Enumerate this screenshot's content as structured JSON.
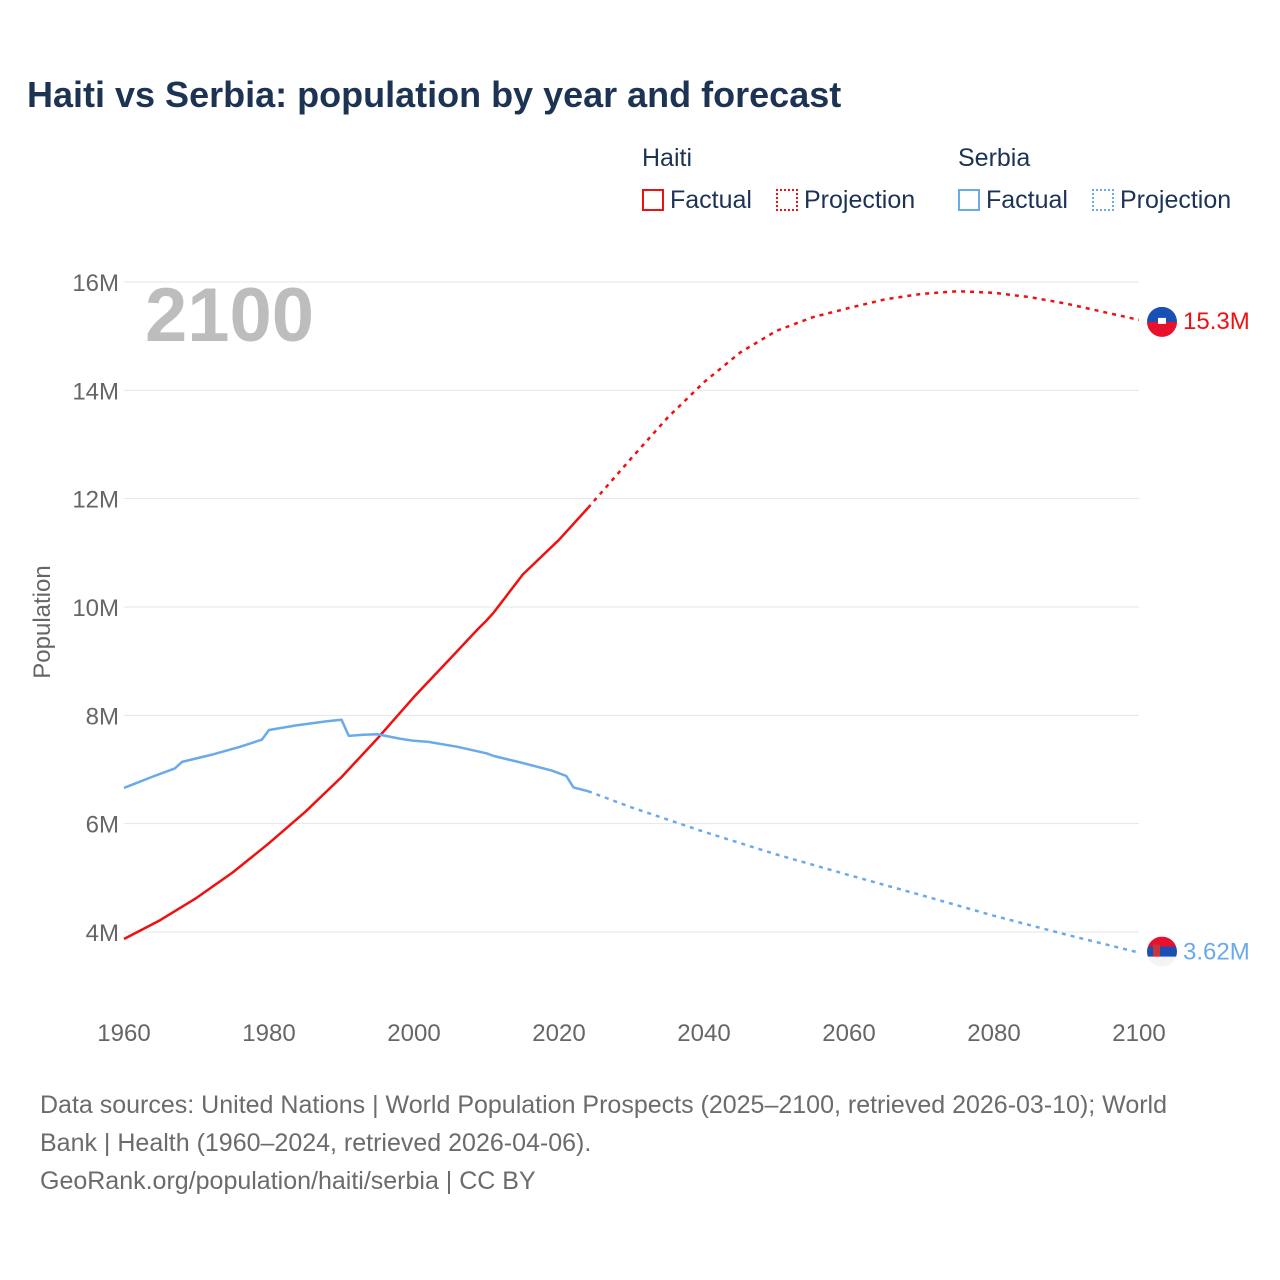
{
  "chart_data": {
    "type": "line",
    "title": "Haiti vs Serbia: population by year and forecast",
    "ylabel": "Population",
    "xlabel": "",
    "xlim": [
      1960,
      2100
    ],
    "ylim": [
      3,
      16.5
    ],
    "x_ticks": [
      "1960",
      "1980",
      "2000",
      "2020",
      "2040",
      "2060",
      "2080",
      "2100"
    ],
    "y_ticks": [
      "4M",
      "6M",
      "8M",
      "10M",
      "12M",
      "14M",
      "16M"
    ],
    "y_tick_values": [
      4,
      6,
      8,
      10,
      12,
      14,
      16
    ],
    "x_tick_values": [
      1960,
      1980,
      2000,
      2020,
      2040,
      2060,
      2080,
      2100
    ],
    "grid": true,
    "current_year_label": "2100",
    "legend_position": "top-right",
    "units": "millions",
    "series": [
      {
        "name": "Haiti",
        "color": "#ee1111",
        "factual_label": "Factual",
        "projection_label": "Projection",
        "factual": {
          "x": [
            1960,
            1965,
            1970,
            1975,
            1980,
            1985,
            1990,
            1995,
            2000,
            2005,
            2009,
            2010,
            2011,
            2015,
            2020,
            2024
          ],
          "y": [
            3.87,
            4.22,
            4.63,
            5.1,
            5.64,
            6.22,
            6.86,
            7.58,
            8.34,
            9.05,
            9.62,
            9.75,
            9.9,
            10.6,
            11.24,
            11.83
          ]
        },
        "projection": {
          "x": [
            2024,
            2030,
            2035,
            2040,
            2045,
            2050,
            2055,
            2060,
            2065,
            2070,
            2075,
            2080,
            2085,
            2090,
            2095,
            2100
          ],
          "y": [
            11.83,
            12.75,
            13.5,
            14.15,
            14.7,
            15.1,
            15.35,
            15.52,
            15.68,
            15.78,
            15.83,
            15.8,
            15.72,
            15.6,
            15.45,
            15.3
          ]
        },
        "end_label": "15.3M"
      },
      {
        "name": "Serbia",
        "color": "#6aaae8",
        "factual_label": "Factual",
        "projection_label": "Projection",
        "factual": {
          "x": [
            1960,
            1964,
            1967,
            1968,
            1972,
            1976,
            1979,
            1980,
            1984,
            1988,
            1990,
            1991,
            1993,
            1995,
            1998,
            2000,
            2002,
            2006,
            2010,
            2011,
            2015,
            2019,
            2021,
            2022,
            2024
          ],
          "y": [
            6.66,
            6.87,
            7.02,
            7.14,
            7.27,
            7.42,
            7.55,
            7.73,
            7.82,
            7.89,
            7.92,
            7.62,
            7.64,
            7.65,
            7.57,
            7.53,
            7.51,
            7.42,
            7.3,
            7.25,
            7.12,
            6.98,
            6.88,
            6.67,
            6.6
          ]
        },
        "projection": {
          "x": [
            2024,
            2030,
            2040,
            2050,
            2060,
            2070,
            2080,
            2090,
            2100
          ],
          "y": [
            6.6,
            6.3,
            5.85,
            5.43,
            5.05,
            4.68,
            4.3,
            3.95,
            3.62
          ]
        },
        "end_label": "3.62M"
      }
    ]
  },
  "legend": {
    "haiti": "Haiti",
    "serbia": "Serbia",
    "factual": "Factual",
    "projection": "Projection"
  },
  "footer": {
    "sources": "Data sources: United Nations | World Population Prospects (2025–2100, retrieved 2026-03-10); World Bank | Health (1960–2024, retrieved 2026-04-06).",
    "credit": "GeoRank.org/population/haiti/serbia | CC BY"
  }
}
